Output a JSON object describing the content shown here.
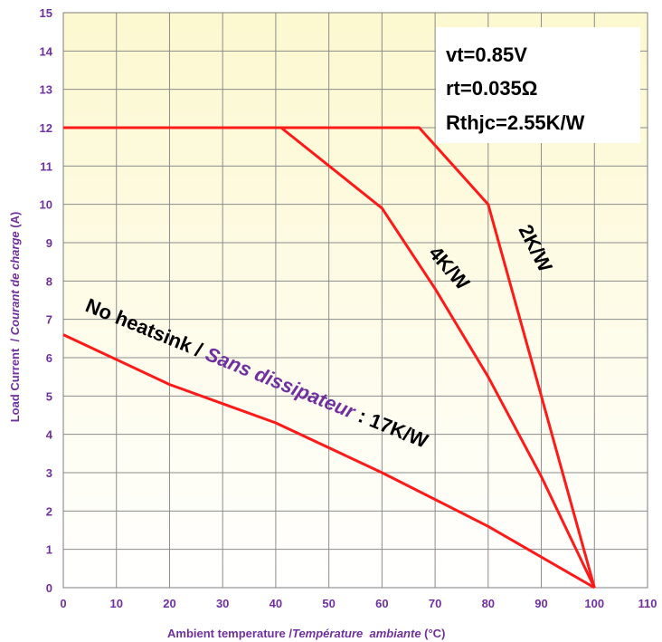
{
  "chart_data": {
    "type": "line",
    "xlim": [
      0,
      110
    ],
    "ylim": [
      0,
      15
    ],
    "xticks": [
      0,
      10,
      20,
      30,
      40,
      50,
      60,
      70,
      80,
      90,
      100,
      110
    ],
    "yticks": [
      0,
      1,
      2,
      3,
      4,
      5,
      6,
      7,
      8,
      9,
      10,
      11,
      12,
      13,
      14,
      15
    ],
    "grid": true,
    "background": "light yellow gradient",
    "line_color": "#ff1a1a",
    "text_color": "#7030a0",
    "xlabel": {
      "en": "Ambient temperature",
      "sep": " /",
      "fr": "Température  ambiante",
      "unit": " (°C)"
    },
    "ylabel": {
      "en": "Load Current",
      "sep": "  / ",
      "fr": "Courant de charge",
      "unit": " (A)"
    },
    "parameters": {
      "vt": "vt=0.85V",
      "rt": "rt=0.035Ω",
      "rthjc": "Rthjc=2.55K/W"
    },
    "series": [
      {
        "name": "2K/W",
        "x": [
          0,
          67,
          80,
          100
        ],
        "y": [
          12,
          12,
          10,
          0
        ]
      },
      {
        "name": "4K/W",
        "x": [
          0,
          41,
          60,
          70,
          80,
          90,
          100
        ],
        "y": [
          12,
          12,
          9.9,
          7.8,
          5.5,
          2.9,
          0
        ]
      },
      {
        "name": "17K/W",
        "x": [
          0,
          20,
          40,
          60,
          80,
          100
        ],
        "y": [
          6.6,
          5.3,
          4.3,
          3.0,
          1.6,
          0
        ]
      }
    ],
    "annotations": {
      "k2": "2K/W",
      "k4": "4K/W",
      "no_heatsink_a": "No heatsink / ",
      "no_heatsink_b": "Sans dissipateur",
      "no_heatsink_c": " : 17K/W"
    }
  }
}
